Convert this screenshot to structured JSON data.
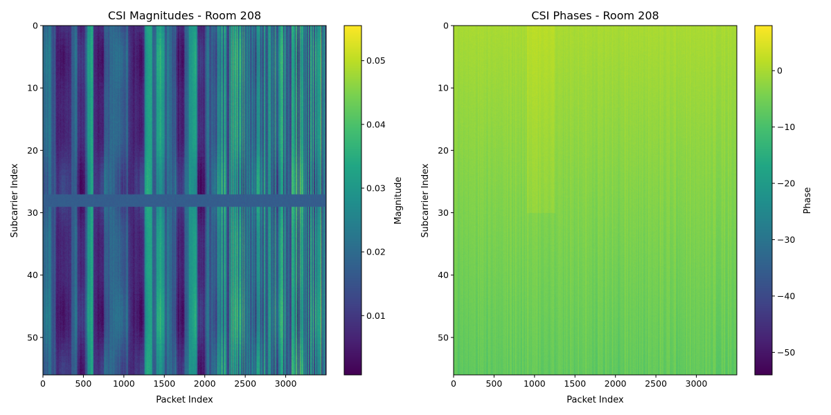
{
  "chart_data": [
    {
      "type": "heatmap",
      "title": "CSI Magnitudes - Room 208",
      "xlabel": "Packet Index",
      "ylabel": "Subcarrier Index",
      "xlim": [
        0,
        3500
      ],
      "ylim": [
        56,
        0
      ],
      "xticks": [
        0,
        500,
        1000,
        1500,
        2000,
        2500,
        3000
      ],
      "yticks": [
        0,
        10,
        20,
        30,
        40,
        50
      ],
      "n_packets": 3500,
      "n_subcarriers": 56,
      "colormap": "viridis",
      "colorbar": {
        "label": "Magnitude",
        "range": [
          0.0007,
          0.0555
        ],
        "ticks": [
          "0.01",
          "0.02",
          "0.03",
          "0.04",
          "0.05"
        ],
        "tick_values": [
          0.01,
          0.02,
          0.03,
          0.04,
          0.05
        ]
      },
      "features": {
        "low_band_rows": [
          27,
          28
        ],
        "low_band_value": 0.017,
        "dark_packet_ranges": [
          [
            150,
            350
          ],
          [
            420,
            520
          ],
          [
            620,
            750
          ],
          [
            1050,
            1250
          ],
          [
            1650,
            1750
          ],
          [
            1900,
            2000
          ]
        ],
        "bright_packet_ranges": [
          [
            550,
            620
          ],
          [
            1250,
            1350
          ],
          [
            1400,
            1500
          ],
          [
            1800,
            1900
          ]
        ],
        "noisy_from_packet": 2150
      }
    },
    {
      "type": "heatmap",
      "title": "CSI Phases - Room 208",
      "xlabel": "Packet Index",
      "ylabel": "Subcarrier Index",
      "xlim": [
        0,
        3500
      ],
      "ylim": [
        56,
        0
      ],
      "xticks": [
        0,
        500,
        1000,
        1500,
        2000,
        2500,
        3000
      ],
      "yticks": [
        0,
        10,
        20,
        30,
        40,
        50
      ],
      "n_packets": 3500,
      "n_subcarriers": 56,
      "colormap": "viridis",
      "colorbar": {
        "label": "Phase",
        "range": [
          -54,
          8
        ],
        "ticks": [
          "0",
          "−10",
          "−20",
          "−30",
          "−40",
          "−50"
        ],
        "tick_values": [
          0,
          -10,
          -20,
          -30,
          -40,
          -50
        ]
      },
      "features": {
        "top_value": 0,
        "bottom_value": -7,
        "bright_packet_range": [
          900,
          1250
        ]
      }
    }
  ]
}
